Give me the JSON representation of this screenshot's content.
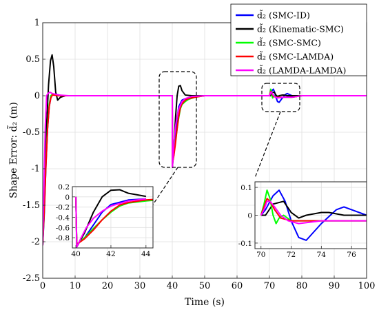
{
  "chart_data": {
    "type": "line",
    "xlabel": "Time (s)",
    "ylabel": "Shape Error: d̃₂ (m)",
    "xlim": [
      0,
      100
    ],
    "ylim": [
      -2.5,
      1
    ],
    "x_ticks": [
      "0",
      "10",
      "20",
      "30",
      "40",
      "50",
      "60",
      "70",
      "80",
      "90",
      "100"
    ],
    "y_ticks": [
      "1",
      "0.5",
      "0",
      "-0.5",
      "-1",
      "-1.5",
      "-2",
      "-2.5"
    ],
    "grid": true,
    "legend_position": "top-right",
    "series": [
      {
        "name": "d̃₂ (SMC-ID)",
        "color": "#0000ff",
        "points": [
          [
            0,
            -2.05
          ],
          [
            0.5,
            -1.6
          ],
          [
            1,
            -0.95
          ],
          [
            1.5,
            -0.45
          ],
          [
            2,
            -0.15
          ],
          [
            2.5,
            -0.03
          ],
          [
            3,
            0.02
          ],
          [
            4,
            0.02
          ],
          [
            6,
            0.0
          ],
          [
            40,
            0.0
          ],
          [
            40.05,
            -0.93
          ],
          [
            40.5,
            -0.8
          ],
          [
            41,
            -0.55
          ],
          [
            41.5,
            -0.3
          ],
          [
            42,
            -0.15
          ],
          [
            43,
            -0.06
          ],
          [
            44,
            -0.04
          ],
          [
            46,
            -0.02
          ],
          [
            50,
            0.0
          ],
          [
            70,
            0.0
          ],
          [
            70.3,
            0.02
          ],
          [
            70.8,
            0.07
          ],
          [
            71.2,
            0.09
          ],
          [
            71.6,
            0.05
          ],
          [
            72,
            -0.02
          ],
          [
            72.5,
            -0.08
          ],
          [
            73,
            -0.09
          ],
          [
            73.5,
            -0.06
          ],
          [
            74,
            -0.03
          ],
          [
            75,
            0.02
          ],
          [
            75.5,
            0.03
          ],
          [
            76,
            0.02
          ],
          [
            77,
            0.0
          ],
          [
            80,
            0.0
          ],
          [
            100,
            0.0
          ]
        ]
      },
      {
        "name": "d̃₂ (Kinematic-SMC)",
        "color": "#000000",
        "points": [
          [
            0,
            -2.05
          ],
          [
            0.6,
            -1.3
          ],
          [
            1.2,
            -0.4
          ],
          [
            1.8,
            0.15
          ],
          [
            2.4,
            0.48
          ],
          [
            2.9,
            0.56
          ],
          [
            3.4,
            0.4
          ],
          [
            4,
            0.05
          ],
          [
            4.6,
            -0.06
          ],
          [
            5.5,
            -0.02
          ],
          [
            7,
            0.0
          ],
          [
            40,
            0.0
          ],
          [
            40.05,
            -0.98
          ],
          [
            40.5,
            -0.7
          ],
          [
            41,
            -0.3
          ],
          [
            41.5,
            0.0
          ],
          [
            42,
            0.13
          ],
          [
            42.5,
            0.14
          ],
          [
            43,
            0.07
          ],
          [
            44,
            0.01
          ],
          [
            46,
            0.0
          ],
          [
            70,
            0.0
          ],
          [
            70.3,
            0.0
          ],
          [
            70.8,
            0.04
          ],
          [
            71.5,
            0.05
          ],
          [
            72,
            0.01
          ],
          [
            72.5,
            -0.01
          ],
          [
            73,
            0.0
          ],
          [
            74,
            0.01
          ],
          [
            74.5,
            0.01
          ],
          [
            75.5,
            0.0
          ],
          [
            77,
            0.0
          ],
          [
            100,
            0.0
          ]
        ]
      },
      {
        "name": "d̃₂ (SMC-SMC)",
        "color": "#00ff00",
        "points": [
          [
            0,
            -2.05
          ],
          [
            0.5,
            -1.5
          ],
          [
            1,
            -0.9
          ],
          [
            1.5,
            -0.4
          ],
          [
            2,
            -0.12
          ],
          [
            2.5,
            0.0
          ],
          [
            3,
            0.02
          ],
          [
            5,
            0.0
          ],
          [
            40,
            0.0
          ],
          [
            40.05,
            -0.93
          ],
          [
            40.5,
            -0.8
          ],
          [
            41,
            -0.62
          ],
          [
            41.5,
            -0.45
          ],
          [
            42,
            -0.3
          ],
          [
            42.5,
            -0.18
          ],
          [
            43,
            -0.12
          ],
          [
            44,
            -0.08
          ],
          [
            45,
            -0.05
          ],
          [
            47,
            -0.02
          ],
          [
            50,
            0.0
          ],
          [
            70,
            0.0
          ],
          [
            70.2,
            0.04
          ],
          [
            70.4,
            0.09
          ],
          [
            70.6,
            0.06
          ],
          [
            70.8,
            0.0
          ],
          [
            71,
            -0.03
          ],
          [
            71.2,
            -0.01
          ],
          [
            71.5,
            0.0
          ],
          [
            72,
            -0.02
          ],
          [
            73,
            -0.02
          ],
          [
            75,
            -0.02
          ],
          [
            77,
            -0.02
          ],
          [
            80,
            0.0
          ],
          [
            100,
            0.0
          ]
        ]
      },
      {
        "name": "d̃₂ (SMC-LAMDA)",
        "color": "#ff0000",
        "points": [
          [
            0,
            -2.05
          ],
          [
            0.5,
            -1.55
          ],
          [
            1,
            -0.95
          ],
          [
            1.5,
            -0.45
          ],
          [
            2,
            -0.15
          ],
          [
            2.5,
            -0.03
          ],
          [
            3,
            0.01
          ],
          [
            5,
            0.0
          ],
          [
            40,
            0.0
          ],
          [
            40.05,
            -0.93
          ],
          [
            40.5,
            -0.82
          ],
          [
            41,
            -0.65
          ],
          [
            41.5,
            -0.45
          ],
          [
            42,
            -0.28
          ],
          [
            42.5,
            -0.16
          ],
          [
            43,
            -0.11
          ],
          [
            44,
            -0.06
          ],
          [
            45,
            -0.04
          ],
          [
            47,
            -0.02
          ],
          [
            50,
            0.0
          ],
          [
            70,
            0.0
          ],
          [
            70.2,
            0.03
          ],
          [
            70.4,
            0.06
          ],
          [
            70.6,
            0.05
          ],
          [
            70.9,
            0.02
          ],
          [
            71.3,
            -0.01
          ],
          [
            72,
            -0.02
          ],
          [
            73,
            -0.02
          ],
          [
            75,
            -0.02
          ],
          [
            77,
            -0.02
          ],
          [
            80,
            0.0
          ],
          [
            100,
            0.0
          ]
        ]
      },
      {
        "name": "d̃₂ (LAMDA-LAMDA)",
        "color": "#ff00ff",
        "points": [
          [
            0,
            -2.05
          ],
          [
            0.4,
            -1.2
          ],
          [
            0.8,
            -0.4
          ],
          [
            1.2,
            0.0
          ],
          [
            1.6,
            0.03
          ],
          [
            2.2,
            0.05
          ],
          [
            3,
            0.03
          ],
          [
            5,
            0.01
          ],
          [
            8,
            0.0
          ],
          [
            40,
            0.0
          ],
          [
            40.05,
            -0.98
          ],
          [
            40.3,
            -0.8
          ],
          [
            40.6,
            -0.6
          ],
          [
            41,
            -0.42
          ],
          [
            41.5,
            -0.28
          ],
          [
            42,
            -0.18
          ],
          [
            43,
            -0.08
          ],
          [
            44,
            -0.04
          ],
          [
            46,
            -0.01
          ],
          [
            50,
            0.0
          ],
          [
            70,
            0.0
          ],
          [
            70.2,
            0.02
          ],
          [
            70.4,
            0.05
          ],
          [
            70.6,
            0.05
          ],
          [
            70.9,
            0.03
          ],
          [
            71.3,
            0.0
          ],
          [
            71.8,
            -0.02
          ],
          [
            72.5,
            -0.03
          ],
          [
            74,
            -0.02
          ],
          [
            77,
            -0.02
          ],
          [
            80,
            0.0
          ],
          [
            100,
            0.0
          ]
        ]
      }
    ],
    "insets": [
      {
        "xlim": [
          39.8,
          44.4
        ],
        "ylim": [
          -1.0,
          0.2
        ],
        "x_ticks": [
          "40",
          "42",
          "44"
        ],
        "y_ticks": [
          "0.2",
          "0",
          "-0.2",
          "-0.4",
          "-0.6",
          "-0.8"
        ]
      },
      {
        "xlim": [
          69.6,
          77.0
        ],
        "ylim": [
          -0.12,
          0.12
        ],
        "x_ticks": [
          "70",
          "72",
          "74",
          "76"
        ],
        "y_ticks": [
          "0.1",
          "0",
          "-0.1"
        ]
      }
    ]
  }
}
